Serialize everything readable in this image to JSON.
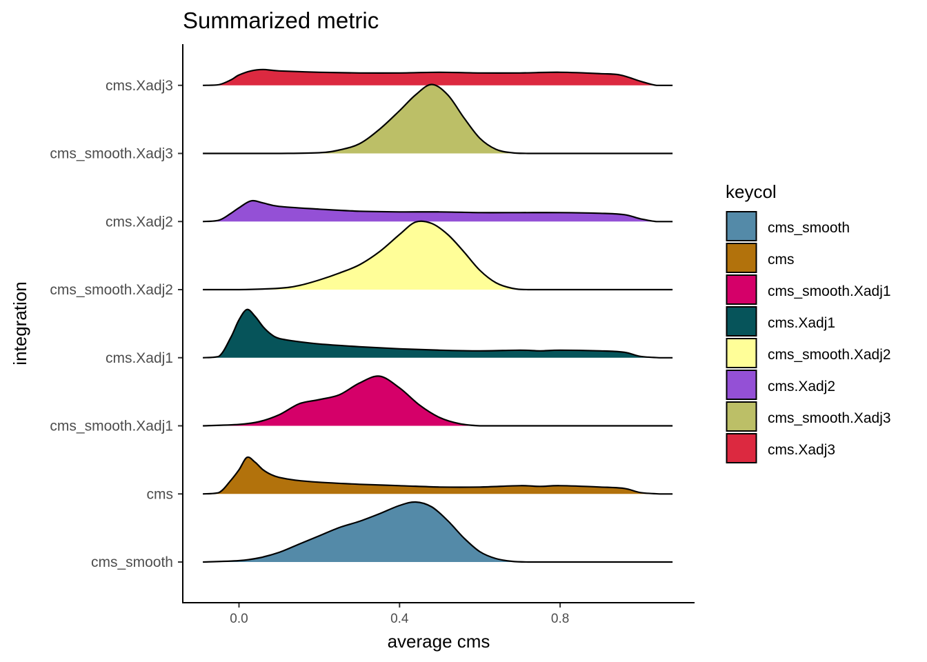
{
  "chart_data": {
    "type": "ridgeline",
    "title": "Summarized metric",
    "xlabel": "average cms",
    "ylabel": "integration",
    "xlim": [
      -0.14,
      1.13
    ],
    "x_ticks": [
      0.0,
      0.4,
      0.8
    ],
    "x_tick_labels": [
      "0.0",
      "0.4",
      "0.8"
    ],
    "grid": false,
    "legend": {
      "title": "keycol",
      "position": "right",
      "entries": [
        "cms_smooth",
        "cms",
        "cms_smooth.Xadj1",
        "cms.Xadj1",
        "cms_smooth.Xadj2",
        "cms.Xadj2",
        "cms_smooth.Xadj3",
        "cms.Xadj3"
      ]
    },
    "series": [
      {
        "name": "cms_smooth",
        "color": "#548aa8",
        "x": [
          -0.09,
          0.0,
          0.05,
          0.1,
          0.15,
          0.2,
          0.25,
          0.3,
          0.35,
          0.4,
          0.44,
          0.48,
          0.52,
          0.56,
          0.6,
          0.64,
          0.68,
          0.72,
          0.8,
          0.9,
          1.0,
          1.08
        ],
        "density": [
          0.0,
          0.02,
          0.06,
          0.14,
          0.26,
          0.38,
          0.5,
          0.59,
          0.7,
          0.82,
          0.87,
          0.8,
          0.6,
          0.35,
          0.15,
          0.05,
          0.01,
          0.0,
          0.0,
          0.0,
          0.0,
          0.0
        ]
      },
      {
        "name": "cms",
        "color": "#b2720c",
        "x": [
          -0.09,
          -0.05,
          -0.02,
          0.0,
          0.02,
          0.04,
          0.06,
          0.08,
          0.1,
          0.14,
          0.2,
          0.3,
          0.4,
          0.5,
          0.6,
          0.7,
          0.75,
          0.8,
          0.9,
          0.96,
          1.0,
          1.05,
          1.08
        ],
        "density": [
          0.0,
          0.02,
          0.2,
          0.35,
          0.53,
          0.46,
          0.35,
          0.28,
          0.24,
          0.2,
          0.17,
          0.14,
          0.12,
          0.1,
          0.1,
          0.12,
          0.11,
          0.12,
          0.1,
          0.08,
          0.02,
          0.0,
          0.0
        ]
      },
      {
        "name": "cms_smooth.Xadj1",
        "color": "#d50069",
        "x": [
          -0.09,
          0.0,
          0.05,
          0.1,
          0.15,
          0.2,
          0.25,
          0.3,
          0.35,
          0.4,
          0.45,
          0.5,
          0.55,
          0.6,
          0.65,
          0.7,
          0.8,
          0.9,
          1.0,
          1.08
        ],
        "density": [
          0.0,
          0.02,
          0.06,
          0.16,
          0.32,
          0.38,
          0.45,
          0.62,
          0.72,
          0.55,
          0.3,
          0.12,
          0.03,
          0.0,
          0.0,
          0.0,
          0.0,
          0.0,
          0.0,
          0.0
        ]
      },
      {
        "name": "cms.Xadj1",
        "color": "#06545a",
        "x": [
          -0.09,
          -0.05,
          -0.02,
          0.0,
          0.02,
          0.04,
          0.06,
          0.08,
          0.1,
          0.14,
          0.2,
          0.3,
          0.4,
          0.5,
          0.6,
          0.7,
          0.75,
          0.8,
          0.9,
          0.96,
          1.0,
          1.05,
          1.08
        ],
        "density": [
          0.0,
          0.02,
          0.3,
          0.55,
          0.7,
          0.6,
          0.45,
          0.34,
          0.28,
          0.24,
          0.2,
          0.16,
          0.13,
          0.11,
          0.1,
          0.11,
          0.1,
          0.11,
          0.1,
          0.08,
          0.02,
          0.0,
          0.0
        ]
      },
      {
        "name": "cms_smooth.Xadj2",
        "color": "#fffe98",
        "x": [
          -0.09,
          0.0,
          0.1,
          0.15,
          0.2,
          0.25,
          0.3,
          0.35,
          0.4,
          0.44,
          0.48,
          0.52,
          0.56,
          0.6,
          0.64,
          0.68,
          0.72,
          0.8,
          0.9,
          1.0,
          1.08
        ],
        "density": [
          0.0,
          0.0,
          0.02,
          0.06,
          0.14,
          0.24,
          0.36,
          0.55,
          0.8,
          0.98,
          0.96,
          0.8,
          0.55,
          0.28,
          0.1,
          0.02,
          0.0,
          0.0,
          0.0,
          0.0,
          0.0
        ]
      },
      {
        "name": "cms.Xadj2",
        "color": "#9450d6",
        "x": [
          -0.09,
          -0.05,
          -0.02,
          0.0,
          0.03,
          0.06,
          0.1,
          0.2,
          0.3,
          0.4,
          0.5,
          0.6,
          0.7,
          0.8,
          0.9,
          0.96,
          1.0,
          1.04,
          1.08
        ],
        "density": [
          0.0,
          0.02,
          0.12,
          0.2,
          0.3,
          0.27,
          0.22,
          0.18,
          0.15,
          0.14,
          0.14,
          0.13,
          0.13,
          0.13,
          0.12,
          0.1,
          0.04,
          0.0,
          0.0
        ]
      },
      {
        "name": "cms_smooth.Xadj3",
        "color": "#bcbf67",
        "x": [
          -0.09,
          0.0,
          0.1,
          0.2,
          0.25,
          0.3,
          0.35,
          0.4,
          0.44,
          0.48,
          0.52,
          0.56,
          0.6,
          0.64,
          0.68,
          0.72,
          0.8,
          0.9,
          1.0,
          1.08
        ],
        "density": [
          0.0,
          0.0,
          0.0,
          0.01,
          0.05,
          0.14,
          0.35,
          0.62,
          0.85,
          1.0,
          0.85,
          0.52,
          0.22,
          0.06,
          0.01,
          0.0,
          0.0,
          0.0,
          0.0,
          0.0
        ]
      },
      {
        "name": "cms.Xadj3",
        "color": "#dc2940",
        "x": [
          -0.09,
          -0.05,
          -0.02,
          0.0,
          0.03,
          0.06,
          0.1,
          0.2,
          0.3,
          0.4,
          0.5,
          0.6,
          0.7,
          0.8,
          0.9,
          0.95,
          1.0,
          1.04,
          1.08
        ],
        "density": [
          0.0,
          0.01,
          0.08,
          0.15,
          0.21,
          0.23,
          0.21,
          0.19,
          0.18,
          0.18,
          0.19,
          0.18,
          0.18,
          0.19,
          0.17,
          0.15,
          0.06,
          0.0,
          0.0
        ]
      }
    ],
    "categories_bottom_to_top": [
      "cms_smooth",
      "cms",
      "cms_smooth.Xadj1",
      "cms.Xadj1",
      "cms_smooth.Xadj2",
      "cms.Xadj2",
      "cms_smooth.Xadj3",
      "cms.Xadj3"
    ]
  }
}
